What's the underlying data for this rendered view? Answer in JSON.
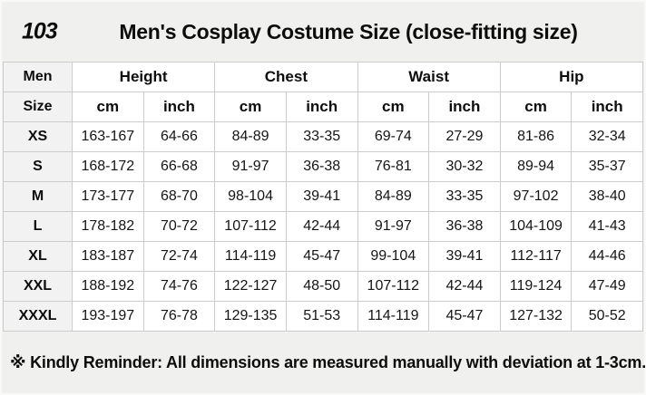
{
  "page": {
    "badge": "103",
    "title": "Men's Cosplay Costume Size (close-fitting size)",
    "note": "※ Kindly Reminder: All dimensions are measured manually with deviation at 1-3cm."
  },
  "table": {
    "corner_label": "Men",
    "size_label": "Size",
    "groups": [
      {
        "label": "Height"
      },
      {
        "label": "Chest"
      },
      {
        "label": "Waist"
      },
      {
        "label": "Hip"
      }
    ],
    "units": {
      "cm": "cm",
      "inch": "inch"
    },
    "rows": [
      {
        "size": "XS",
        "values": [
          "163-167",
          "64-66",
          "84-89",
          "33-35",
          "69-74",
          "27-29",
          "81-86",
          "32-34"
        ]
      },
      {
        "size": "S",
        "values": [
          "168-172",
          "66-68",
          "91-97",
          "36-38",
          "76-81",
          "30-32",
          "89-94",
          "35-37"
        ]
      },
      {
        "size": "M",
        "values": [
          "173-177",
          "68-70",
          "98-104",
          "39-41",
          "84-89",
          "33-35",
          "97-102",
          "38-40"
        ]
      },
      {
        "size": "L",
        "values": [
          "178-182",
          "70-72",
          "107-112",
          "42-44",
          "91-97",
          "36-38",
          "104-109",
          "41-43"
        ]
      },
      {
        "size": "XL",
        "values": [
          "183-187",
          "72-74",
          "114-119",
          "45-47",
          "99-104",
          "39-41",
          "112-117",
          "44-46"
        ]
      },
      {
        "size": "XXL",
        "values": [
          "188-192",
          "74-76",
          "122-127",
          "48-50",
          "107-112",
          "42-44",
          "119-124",
          "47-49"
        ]
      },
      {
        "size": "XXXL",
        "values": [
          "193-197",
          "76-78",
          "129-135",
          "51-53",
          "114-119",
          "45-47",
          "127-132",
          "50-52"
        ]
      }
    ]
  },
  "colors": {
    "page_bg": "#f0f0ee",
    "cell_bg": "#ffffff",
    "label_bg": "#f2f2f2",
    "border": "#cccccc",
    "text": "#0d0d0d"
  }
}
